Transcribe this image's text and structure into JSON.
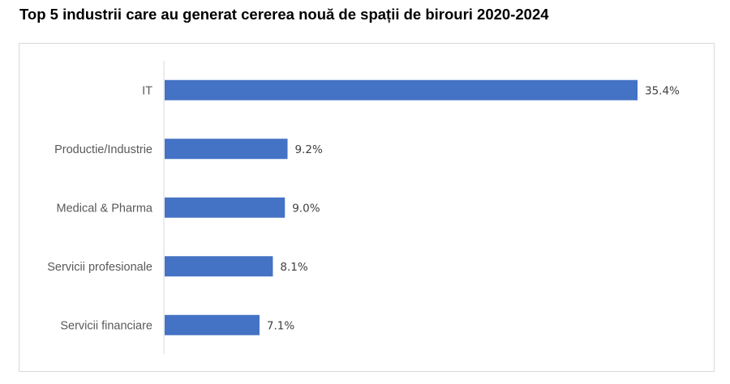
{
  "chart_data": {
    "type": "bar",
    "orientation": "horizontal",
    "title": "Top 5 industrii care au generat cererea nouă de spații de birouri 2020-2024",
    "categories": [
      "IT",
      "Productie/Industrie",
      "Medical & Pharma",
      "Servicii profesionale",
      "Servicii financiare"
    ],
    "values": [
      35.4,
      9.2,
      9.0,
      8.1,
      7.1
    ],
    "data_labels": [
      "35.4%",
      "9.2%",
      "9.0%",
      "8.1%",
      "7.1%"
    ],
    "unit": "%",
    "xlabel": "",
    "ylabel": "",
    "xlim": [
      0,
      36
    ],
    "grid": false,
    "bar_color": "#4472C4"
  }
}
